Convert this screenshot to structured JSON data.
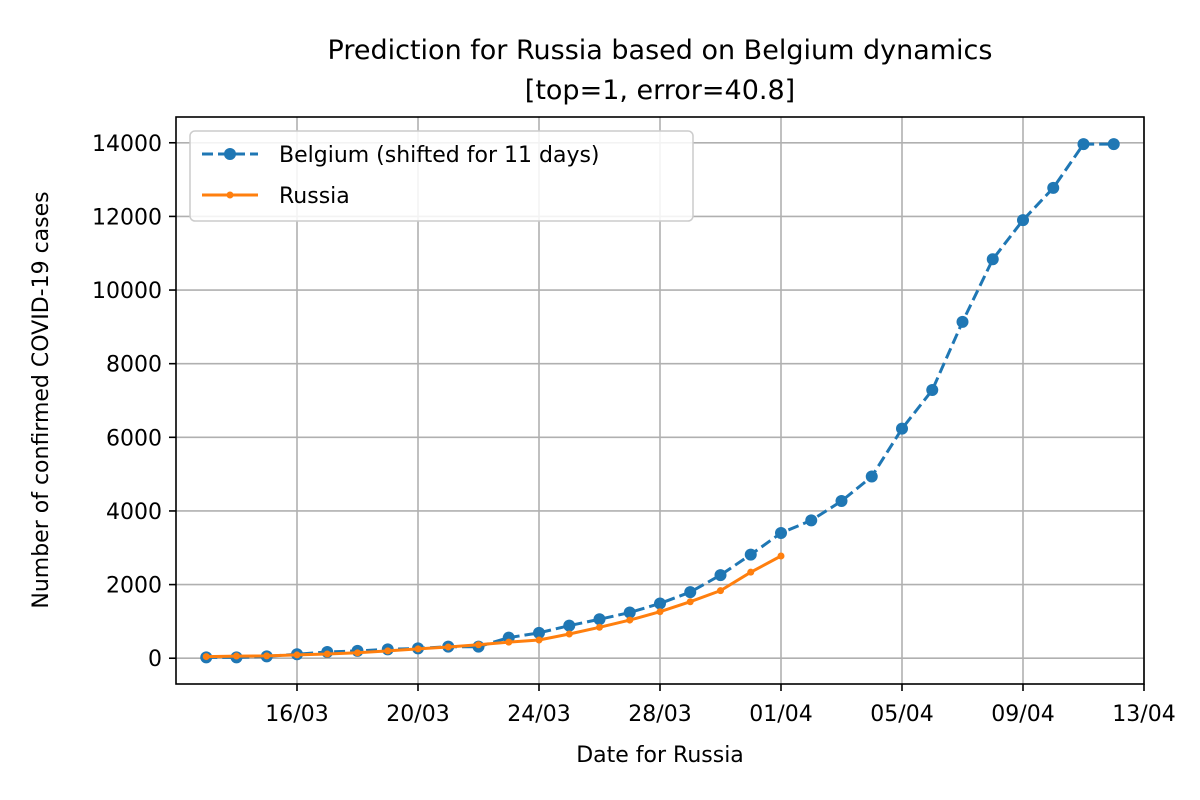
{
  "chart_data": {
    "type": "line",
    "title": "Prediction for Russia based on Belgium dynamics",
    "subtitle": "[top=1, error=40.8]",
    "xlabel": "Date for Russia",
    "ylabel": "Number of confirmed COVID-19 cases",
    "x_ticks": [
      {
        "date": "2020-03-16",
        "label": "16/03"
      },
      {
        "date": "2020-03-20",
        "label": "20/03"
      },
      {
        "date": "2020-03-24",
        "label": "24/03"
      },
      {
        "date": "2020-03-28",
        "label": "28/03"
      },
      {
        "date": "2020-04-01",
        "label": "01/04"
      },
      {
        "date": "2020-04-05",
        "label": "05/04"
      },
      {
        "date": "2020-04-09",
        "label": "09/04"
      },
      {
        "date": "2020-04-13",
        "label": "13/04"
      }
    ],
    "y_ticks": [
      0,
      2000,
      4000,
      6000,
      8000,
      10000,
      12000,
      14000
    ],
    "y_tick_labels": [
      "0",
      "2000",
      "4000",
      "6000",
      "8000",
      "10000",
      "12000",
      "14000"
    ],
    "xlim": [
      "2020-03-12",
      "2020-04-13"
    ],
    "ylim": [
      -700,
      14700
    ],
    "grid": true,
    "legend_position": "top-left",
    "series": [
      {
        "name": "Belgium (shifted for 11 days)",
        "color": "#1f77b4",
        "line_style": "dashed",
        "marker": "circle",
        "x": [
          "2020-03-13",
          "2020-03-14",
          "2020-03-15",
          "2020-03-16",
          "2020-03-17",
          "2020-03-18",
          "2020-03-19",
          "2020-03-20",
          "2020-03-21",
          "2020-03-22",
          "2020-03-23",
          "2020-03-24",
          "2020-03-25",
          "2020-03-26",
          "2020-03-27",
          "2020-03-28",
          "2020-03-29",
          "2020-03-30",
          "2020-03-31",
          "2020-04-01",
          "2020-04-02",
          "2020-04-03",
          "2020-04-04",
          "2020-04-05",
          "2020-04-06",
          "2020-04-07",
          "2020-04-08",
          "2020-04-09",
          "2020-04-10",
          "2020-04-11",
          "2020-04-12"
        ],
        "y": [
          23,
          23,
          50,
          109,
          169,
          200,
          239,
          267,
          314,
          314,
          559,
          689,
          886,
          1058,
          1243,
          1486,
          1795,
          2257,
          2815,
          3401,
          3743,
          4269,
          4937,
          6235,
          7284,
          9134,
          10836,
          11899,
          12775,
          13964,
          13964
        ]
      },
      {
        "name": "Russia",
        "color": "#ff7f0e",
        "line_style": "solid",
        "marker": "small-circle",
        "x": [
          "2020-03-13",
          "2020-03-14",
          "2020-03-15",
          "2020-03-16",
          "2020-03-17",
          "2020-03-18",
          "2020-03-19",
          "2020-03-20",
          "2020-03-21",
          "2020-03-22",
          "2020-03-23",
          "2020-03-24",
          "2020-03-25",
          "2020-03-26",
          "2020-03-27",
          "2020-03-28",
          "2020-03-29",
          "2020-03-30",
          "2020-03-31",
          "2020-04-01"
        ],
        "y": [
          45,
          59,
          63,
          90,
          114,
          147,
          199,
          253,
          306,
          367,
          438,
          495,
          658,
          840,
          1036,
          1264,
          1534,
          1836,
          2337,
          2777
        ]
      }
    ]
  }
}
